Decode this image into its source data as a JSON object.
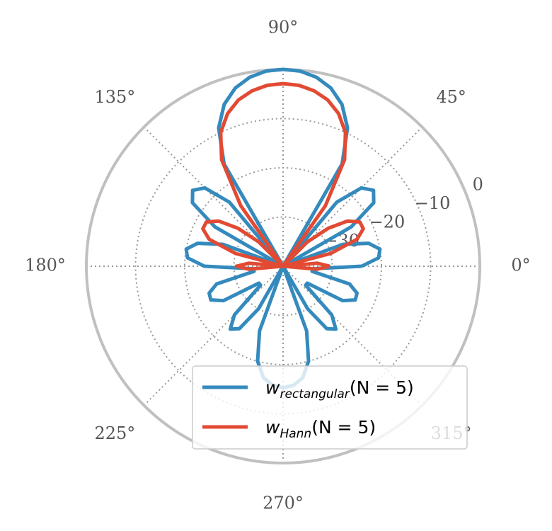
{
  "chart_data": {
    "type": "polar",
    "rlim": [
      -40,
      0
    ],
    "rticks": [
      {
        "value": -30,
        "label": "−30"
      },
      {
        "value": -20,
        "label": "−20"
      },
      {
        "value": -10,
        "label": "−10"
      },
      0
    ],
    "thetaticks": [
      {
        "value": 0,
        "label": "0°"
      },
      {
        "value": 45,
        "label": "45°"
      },
      {
        "value": 90,
        "label": "90°"
      },
      {
        "value": 135,
        "label": "135°"
      },
      {
        "value": 180,
        "label": "180°"
      },
      {
        "value": 225,
        "label": "225°"
      },
      {
        "value": 270,
        "label": "270°"
      },
      {
        "value": 315,
        "label": "315°"
      }
    ],
    "grid": true,
    "legend": "lower right",
    "x": [
      0,
      5,
      10,
      15,
      20,
      25,
      30,
      35,
      40,
      45,
      50,
      55,
      60,
      65,
      70,
      75,
      80,
      85,
      90,
      95,
      100,
      105,
      110,
      115,
      120,
      125,
      130,
      135,
      140,
      145,
      150,
      155,
      160,
      165,
      170,
      175,
      180,
      185,
      190,
      195,
      200,
      205,
      210,
      215,
      220,
      225,
      230,
      235,
      240,
      245,
      250,
      255,
      260,
      265,
      270,
      275,
      280,
      285,
      290,
      295,
      300,
      305,
      310,
      315,
      320,
      325,
      330,
      335,
      340,
      345,
      350,
      355,
      360
    ],
    "series": [
      {
        "name": "w",
        "name_sub": "rectangular",
        "name_suffix": "(N = 5)",
        "color": "#348abd",
        "values": [
          -24,
          -20.5,
          -20,
          -22,
          -27,
          -40,
          -24,
          -17.5,
          -16,
          -17.5,
          -23,
          -40,
          -16,
          -9,
          -5,
          -2.5,
          -1,
          -0.2,
          0,
          -0.2,
          -1,
          -2.5,
          -5,
          -9,
          -16,
          -40,
          -23,
          -17.5,
          -16,
          -17.5,
          -24,
          -40,
          -27,
          -22,
          -20,
          -20.5,
          -24,
          -34,
          -34,
          -26,
          -24,
          -23.8,
          -26,
          -34,
          -34,
          -26,
          -23.3,
          -24.5,
          -30,
          -40,
          -26,
          -20,
          -17,
          -15.7,
          -15.3,
          -15.7,
          -17,
          -20,
          -26,
          -40,
          -30,
          -24.5,
          -23.3,
          -26,
          -34,
          -34,
          -26,
          -23.8,
          -24,
          -26,
          -34,
          -34,
          -24
        ]
      },
      {
        "name": "w",
        "name_sub": "Hann",
        "name_suffix": "(N = 5)",
        "color": "#e24a33",
        "values": [
          -30.5,
          -33,
          -40,
          -30,
          -24,
          -22,
          -22,
          -24,
          -28,
          -33,
          -40,
          -25,
          -15,
          -10,
          -7,
          -5,
          -3.8,
          -3.1,
          -2.9,
          -3.1,
          -3.8,
          -5,
          -7,
          -10,
          -15,
          -25,
          -40,
          -33,
          -28,
          -24,
          -22,
          -22,
          -24,
          -30,
          -40,
          -33,
          -30.5,
          -33,
          -40,
          -40,
          -40,
          -40,
          -40,
          -40,
          -40,
          -40,
          -40,
          -40,
          -40,
          -40,
          -40,
          -40,
          -40,
          -40,
          -40,
          -40,
          -40,
          -40,
          -40,
          -40,
          -40,
          -40,
          -40,
          -40,
          -40,
          -40,
          -40,
          -40,
          -40,
          -40,
          -40,
          -33,
          -30.5
        ]
      }
    ]
  }
}
